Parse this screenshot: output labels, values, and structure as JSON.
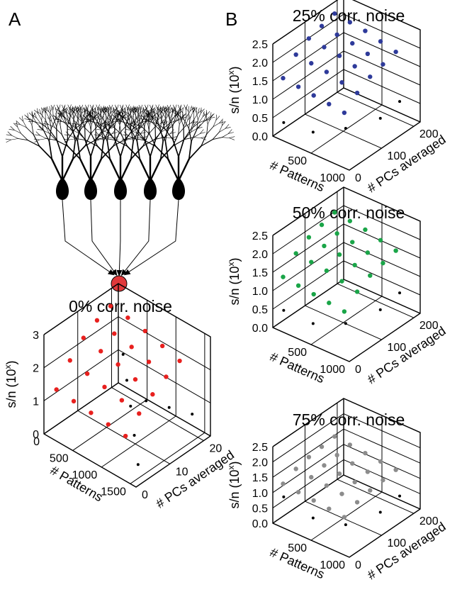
{
  "panel_labels": [
    "A",
    "B"
  ],
  "chart_data": [
    {
      "type": "scatter3d",
      "title": "0% corr. noise",
      "xlabel": "# Patterns",
      "ylabel": "# PCs averaged",
      "zlabel": [
        "s/n (10",
        "x",
        ")"
      ],
      "xlim": [
        0,
        1600
      ],
      "xticks": [
        0,
        500,
        1000,
        1500
      ],
      "ylim": [
        0,
        22
      ],
      "yticks": [
        0,
        10,
        20
      ],
      "zlim": [
        0,
        3
      ],
      "zticks": [
        0,
        1,
        2,
        3
      ],
      "grid": true,
      "series": [
        {
          "color": "#000000",
          "x": [
            200,
            500,
            800,
            1100,
            1400,
            1400,
            1000,
            600
          ],
          "y": [
            20,
            16,
            12,
            8,
            4,
            20,
            20,
            20
          ],
          "values": [
            1.2,
            1.0,
            0.8,
            0.5,
            0.2,
            0.6,
            0.4,
            0.2
          ]
        },
        {
          "color": "#e8201e",
          "x": [
            100,
            400,
            700,
            1000,
            1300,
            100,
            400,
            700,
            1000,
            1300,
            100,
            400,
            700,
            1000,
            1300,
            100,
            400,
            700,
            1000,
            1300,
            100,
            400,
            700,
            1000,
            1300
          ],
          "y": [
            2,
            2,
            2,
            2,
            2,
            6,
            6,
            6,
            6,
            6,
            10,
            10,
            10,
            10,
            10,
            14,
            14,
            14,
            14,
            14,
            18,
            18,
            18,
            18,
            18
          ],
          "values": [
            1.3,
            1.25,
            1.2,
            1.15,
            1.1,
            1.9,
            1.8,
            1.7,
            1.6,
            1.5,
            2.3,
            2.2,
            2.1,
            1.95,
            1.8,
            2.55,
            2.45,
            2.35,
            2.2,
            2.05,
            2.7,
            2.65,
            2.55,
            2.4,
            2.25
          ]
        }
      ]
    },
    {
      "type": "scatter3d",
      "title": "25% corr. noise",
      "xlabel": "# Patterns",
      "ylabel": "# PCs averaged",
      "zlabel": [
        "s/n (10",
        "x",
        ")"
      ],
      "xlim": [
        0,
        1000
      ],
      "xticks": [
        500,
        1000
      ],
      "ylim": [
        0,
        220
      ],
      "yticks": [
        0,
        100,
        200
      ],
      "zlim": [
        0,
        2.5
      ],
      "zticks": [
        {
          "value": 0,
          "label": "0.0"
        },
        0.5,
        {
          "value": 1,
          "label": "1.0"
        },
        1.5,
        {
          "value": 2,
          "label": "2.0"
        },
        2.5
      ],
      "grid": true,
      "series": [
        {
          "color": "#000000",
          "x": [
            100,
            400,
            700,
            900,
            900
          ],
          "y": [
            10,
            30,
            60,
            120,
            180
          ],
          "values": [
            0.4,
            0.3,
            0.5,
            0.6,
            0.7
          ]
        },
        {
          "color": "#2e3a9a",
          "x": [
            50,
            250,
            450,
            650,
            850,
            50,
            250,
            450,
            650,
            850,
            50,
            250,
            450,
            650,
            850,
            50,
            250,
            450,
            650,
            850,
            50,
            250,
            450,
            650,
            850
          ],
          "y": [
            20,
            20,
            20,
            20,
            20,
            60,
            60,
            60,
            60,
            60,
            100,
            100,
            100,
            100,
            100,
            140,
            140,
            140,
            140,
            140,
            180,
            180,
            180,
            180,
            180
          ],
          "values": [
            1.5,
            1.45,
            1.4,
            1.35,
            1.3,
            1.9,
            1.85,
            1.8,
            1.7,
            1.6,
            2.1,
            2.05,
            2.0,
            1.9,
            1.8,
            2.2,
            2.15,
            2.1,
            2.0,
            1.9,
            2.3,
            2.25,
            2.2,
            2.1,
            2.0
          ]
        }
      ]
    },
    {
      "type": "scatter3d",
      "title": "50% corr. noise",
      "xlabel": "# Patterns",
      "ylabel": "# PCs averaged",
      "zlabel": [
        "s/n (10",
        "x",
        ")"
      ],
      "xlim": [
        0,
        1000
      ],
      "xticks": [
        500,
        1000
      ],
      "ylim": [
        0,
        220
      ],
      "yticks": [
        0,
        100,
        200
      ],
      "zlim": [
        0,
        2.5
      ],
      "zticks": [
        {
          "value": 0,
          "label": "0.0"
        },
        0.5,
        {
          "value": 1,
          "label": "1.0"
        },
        1.5,
        {
          "value": 2,
          "label": "2.0"
        },
        2.5
      ],
      "grid": true,
      "series": [
        {
          "color": "#000000",
          "x": [
            100,
            400,
            700,
            900,
            900
          ],
          "y": [
            10,
            30,
            60,
            120,
            180
          ],
          "values": [
            0.5,
            0.3,
            0.4,
            0.6,
            0.7
          ]
        },
        {
          "color": "#1aa548",
          "x": [
            50,
            250,
            450,
            650,
            850,
            50,
            250,
            450,
            650,
            850,
            50,
            250,
            450,
            650,
            850,
            50,
            250,
            450,
            650,
            850,
            50,
            250,
            450,
            650,
            850
          ],
          "y": [
            20,
            20,
            20,
            20,
            20,
            60,
            60,
            60,
            60,
            60,
            100,
            100,
            100,
            100,
            100,
            140,
            140,
            140,
            140,
            140,
            180,
            180,
            180,
            180,
            180
          ],
          "values": [
            1.3,
            1.25,
            1.2,
            1.15,
            1.1,
            1.7,
            1.65,
            1.6,
            1.5,
            1.4,
            1.9,
            1.85,
            1.8,
            1.7,
            1.6,
            2.0,
            1.95,
            1.9,
            1.8,
            1.7,
            2.1,
            2.05,
            2.0,
            1.9,
            1.8
          ]
        }
      ]
    },
    {
      "type": "scatter3d",
      "title": "75% corr. noise",
      "xlabel": "# Patterns",
      "ylabel": "# PCs averaged",
      "zlabel": [
        "s/n (10",
        "x",
        ")"
      ],
      "xlim": [
        0,
        1000
      ],
      "xticks": [
        500,
        1000
      ],
      "ylim": [
        0,
        220
      ],
      "yticks": [
        0,
        100,
        200
      ],
      "zlim": [
        0,
        2.5
      ],
      "zticks": [
        {
          "value": 0,
          "label": "0.0"
        },
        0.5,
        {
          "value": 1,
          "label": "1.0"
        },
        1.5,
        {
          "value": 2,
          "label": "2.0"
        },
        2.5
      ],
      "grid": true,
      "series": [
        {
          "color": "#000000",
          "x": [
            100,
            400,
            700,
            900,
            900
          ],
          "y": [
            10,
            30,
            60,
            120,
            180
          ],
          "values": [
            0.9,
            0.4,
            0.3,
            0.5,
            0.6
          ]
        },
        {
          "color": "#8c8c8c",
          "x": [
            50,
            250,
            450,
            650,
            850,
            50,
            250,
            450,
            650,
            850,
            50,
            250,
            450,
            650,
            850,
            50,
            250,
            450,
            650,
            850,
            50,
            250,
            450,
            650,
            850
          ],
          "y": [
            20,
            20,
            20,
            20,
            20,
            60,
            60,
            60,
            60,
            60,
            100,
            100,
            100,
            100,
            100,
            140,
            140,
            140,
            140,
            140,
            180,
            180,
            180,
            180,
            180
          ],
          "values": [
            1.2,
            1.15,
            1.1,
            1.05,
            1.0,
            1.4,
            1.35,
            1.3,
            1.25,
            1.2,
            1.5,
            1.45,
            1.4,
            1.35,
            1.3,
            1.55,
            1.5,
            1.45,
            1.4,
            1.35,
            1.6,
            1.55,
            1.5,
            1.45,
            1.4
          ]
        }
      ]
    }
  ]
}
